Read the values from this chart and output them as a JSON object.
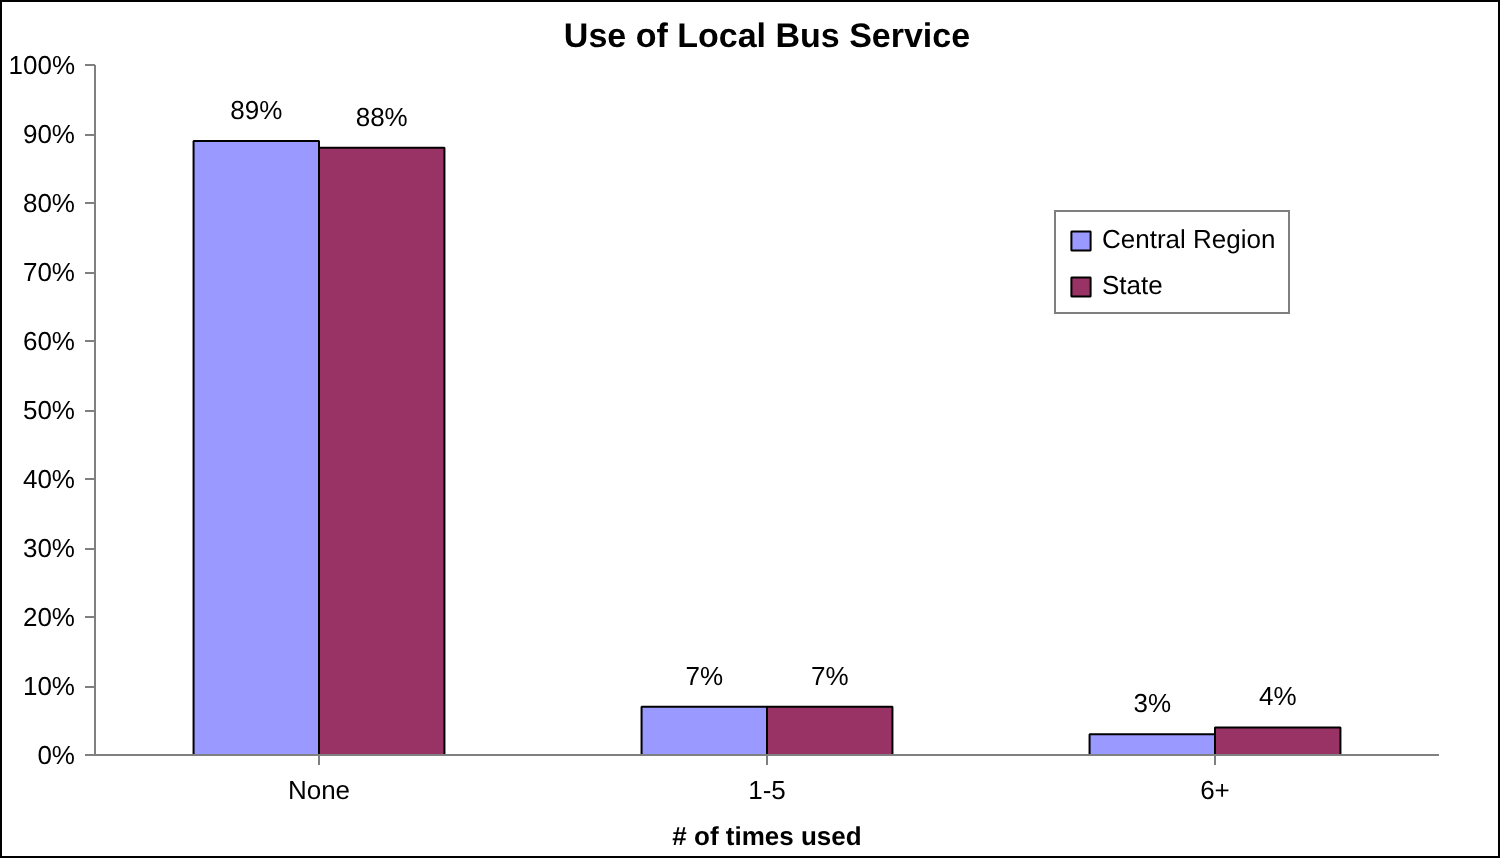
{
  "chart_data": {
    "type": "bar",
    "title": "Use of Local Bus Service",
    "xlabel": "# of times used",
    "categories": [
      "None",
      "1-5",
      "6+"
    ],
    "series": [
      {
        "name": "Central Region",
        "color": "#9999ff",
        "values": [
          89,
          7,
          3
        ],
        "value_labels": [
          "89%",
          "7%",
          "3%"
        ]
      },
      {
        "name": "State",
        "color": "#993366",
        "values": [
          88,
          7,
          4
        ],
        "value_labels": [
          "88%",
          "7%",
          "4%"
        ]
      }
    ],
    "ylim": [
      0,
      100
    ],
    "yticks": [
      {
        "value": 0,
        "label": "0%"
      },
      {
        "value": 10,
        "label": "10%"
      },
      {
        "value": 20,
        "label": "20%"
      },
      {
        "value": 30,
        "label": "30%"
      },
      {
        "value": 40,
        "label": "40%"
      },
      {
        "value": 50,
        "label": "50%"
      },
      {
        "value": 60,
        "label": "60%"
      },
      {
        "value": 70,
        "label": "70%"
      },
      {
        "value": 80,
        "label": "80%"
      },
      {
        "value": 90,
        "label": "90%"
      },
      {
        "value": 100,
        "label": "100%"
      }
    ],
    "legend": "right"
  }
}
